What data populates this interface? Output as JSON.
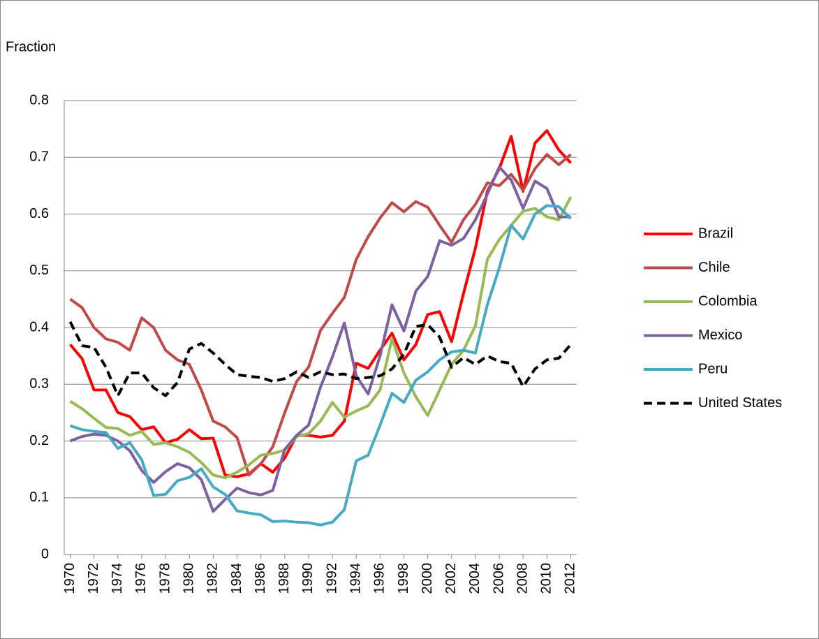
{
  "chart_data": {
    "type": "line",
    "y_label": "Fraction",
    "x": [
      1970,
      1971,
      1972,
      1973,
      1974,
      1975,
      1976,
      1977,
      1978,
      1979,
      1980,
      1981,
      1982,
      1983,
      1984,
      1985,
      1986,
      1987,
      1988,
      1989,
      1990,
      1991,
      1992,
      1993,
      1994,
      1995,
      1996,
      1997,
      1998,
      1999,
      2000,
      2001,
      2002,
      2003,
      2004,
      2005,
      2006,
      2007,
      2008,
      2009,
      2010,
      2011,
      2012
    ],
    "xlim": [
      1969.5,
      2012.5
    ],
    "xticks": [
      1970,
      1972,
      1974,
      1976,
      1978,
      1980,
      1982,
      1984,
      1986,
      1988,
      1990,
      1992,
      1994,
      1996,
      1998,
      2000,
      2002,
      2004,
      2006,
      2008,
      2010,
      2012
    ],
    "ylim": [
      0,
      0.8
    ],
    "yticks": [
      0,
      0.1,
      0.2,
      0.3,
      0.4,
      0.5,
      0.6,
      0.7,
      0.8
    ],
    "grid": true,
    "legend": "right",
    "series": [
      {
        "name": "Brazil",
        "color": "#ff0000",
        "dash": false,
        "values": [
          0.37,
          0.345,
          0.29,
          0.29,
          0.25,
          0.243,
          0.22,
          0.225,
          0.197,
          0.203,
          0.22,
          0.204,
          0.205,
          0.14,
          0.137,
          0.142,
          0.16,
          0.145,
          0.17,
          0.21,
          0.21,
          0.207,
          0.21,
          0.235,
          0.337,
          0.328,
          0.36,
          0.39,
          0.343,
          0.37,
          0.423,
          0.428,
          0.375,
          0.46,
          0.54,
          0.64,
          0.68,
          0.737,
          0.64,
          0.725,
          0.747,
          0.713,
          0.69
        ]
      },
      {
        "name": "Chile",
        "color": "#be4b48",
        "dash": false,
        "values": [
          0.45,
          0.435,
          0.4,
          0.38,
          0.374,
          0.36,
          0.417,
          0.4,
          0.36,
          0.343,
          0.335,
          0.29,
          0.235,
          0.225,
          0.206,
          0.14,
          0.16,
          0.19,
          0.25,
          0.305,
          0.33,
          0.395,
          0.425,
          0.453,
          0.52,
          0.56,
          0.593,
          0.62,
          0.604,
          0.622,
          0.612,
          0.58,
          0.55,
          0.59,
          0.617,
          0.655,
          0.65,
          0.67,
          0.642,
          0.68,
          0.705,
          0.687,
          0.705
        ]
      },
      {
        "name": "Colombia",
        "color": "#98b954",
        "dash": false,
        "values": [
          0.27,
          0.257,
          0.24,
          0.224,
          0.222,
          0.21,
          0.217,
          0.194,
          0.197,
          0.19,
          0.18,
          0.162,
          0.14,
          0.135,
          0.145,
          0.158,
          0.175,
          0.178,
          0.184,
          0.208,
          0.213,
          0.235,
          0.268,
          0.242,
          0.253,
          0.262,
          0.29,
          0.38,
          0.32,
          0.278,
          0.245,
          0.29,
          0.335,
          0.36,
          0.403,
          0.52,
          0.555,
          0.58,
          0.605,
          0.61,
          0.595,
          0.59,
          0.63
        ]
      },
      {
        "name": "Mexico",
        "color": "#7d60a0",
        "dash": false,
        "values": [
          0.2,
          0.208,
          0.212,
          0.21,
          0.2,
          0.183,
          0.148,
          0.127,
          0.146,
          0.16,
          0.153,
          0.132,
          0.076,
          0.097,
          0.117,
          0.109,
          0.105,
          0.113,
          0.185,
          0.21,
          0.228,
          0.295,
          0.348,
          0.408,
          0.315,
          0.283,
          0.35,
          0.44,
          0.394,
          0.464,
          0.49,
          0.553,
          0.545,
          0.557,
          0.59,
          0.635,
          0.683,
          0.66,
          0.61,
          0.658,
          0.645,
          0.595,
          0.595
        ]
      },
      {
        "name": "Peru",
        "color": "#46aac5",
        "dash": false,
        "values": [
          0.227,
          0.22,
          0.217,
          0.215,
          0.187,
          0.197,
          0.167,
          0.104,
          0.106,
          0.13,
          0.136,
          0.151,
          0.119,
          0.106,
          0.077,
          0.073,
          0.07,
          0.058,
          0.059,
          0.057,
          0.056,
          0.052,
          0.057,
          0.079,
          0.165,
          0.175,
          0.228,
          0.284,
          0.268,
          0.307,
          0.322,
          0.343,
          0.357,
          0.36,
          0.355,
          0.44,
          0.505,
          0.58,
          0.556,
          0.6,
          0.615,
          0.613,
          0.592
        ]
      },
      {
        "name": "United States",
        "color": "#000000",
        "dash": true,
        "values": [
          0.41,
          0.368,
          0.365,
          0.33,
          0.28,
          0.32,
          0.32,
          0.294,
          0.28,
          0.303,
          0.362,
          0.372,
          0.355,
          0.335,
          0.317,
          0.314,
          0.312,
          0.305,
          0.31,
          0.322,
          0.312,
          0.322,
          0.317,
          0.318,
          0.31,
          0.312,
          0.315,
          0.327,
          0.353,
          0.402,
          0.405,
          0.383,
          0.33,
          0.347,
          0.335,
          0.35,
          0.34,
          0.337,
          0.296,
          0.327,
          0.343,
          0.346,
          0.37
        ]
      }
    ]
  }
}
